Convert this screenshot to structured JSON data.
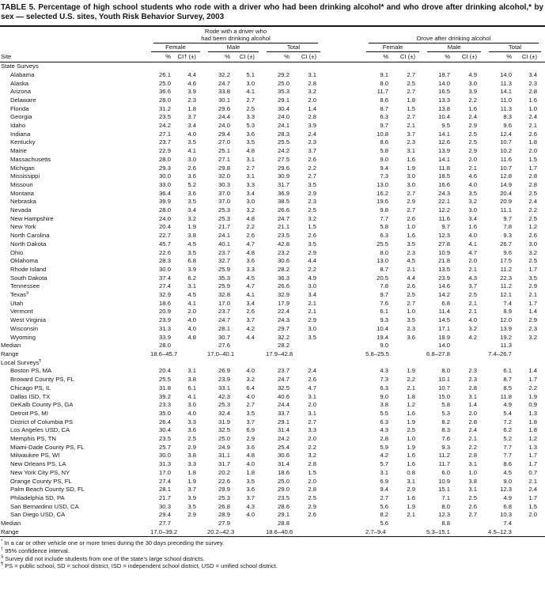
{
  "title": "TABLE 5. Percentage of high school students who rode with a driver who had been drinking alcohol* and who drove after drinking alcohol,* by sex — selected U.S. sites, Youth Risk Behavior Survey, 2003",
  "header": {
    "site": "Site",
    "group_rode_line1": "Rode with a driver who",
    "group_rode_line2": "had been drinking alcohol",
    "group_drove": "Drove after drinking alcohol",
    "female": "Female",
    "male": "Male",
    "total": "Total",
    "pct": "%",
    "ci_dagger": "CI† (±)",
    "ci": "CI (±)"
  },
  "sections": [
    {
      "label": "State Surveys",
      "rows": [
        {
          "site": "Alabama",
          "v": [
            "26.1",
            "4.4",
            "32.2",
            "5.1",
            "29.2",
            "3.1",
            "9.1",
            "2.7",
            "18.7",
            "4.9",
            "14.0",
            "3.4"
          ]
        },
        {
          "site": "Alaska",
          "v": [
            "25.0",
            "4.6",
            "24.7",
            "3.0",
            "25.0",
            "2.8",
            "8.0",
            "2.5",
            "14.0",
            "3.0",
            "11.3",
            "2.3"
          ]
        },
        {
          "site": "Arizona",
          "v": [
            "36.6",
            "3.9",
            "33.8",
            "4.1",
            "35.3",
            "3.2",
            "11.7",
            "2.7",
            "16.5",
            "3.9",
            "14.1",
            "2.8"
          ]
        },
        {
          "site": "Delaware",
          "v": [
            "28.0",
            "2.3",
            "30.1",
            "2.7",
            "29.1",
            "2.0",
            "8.6",
            "1.8",
            "13.3",
            "2.2",
            "11.0",
            "1.6"
          ]
        },
        {
          "site": "Florida",
          "v": [
            "31.2",
            "1.8",
            "29.6",
            "2.5",
            "30.4",
            "1.4",
            "8.7",
            "1.5",
            "13.8",
            "1.6",
            "11.3",
            "1.0"
          ]
        },
        {
          "site": "Georgia",
          "v": [
            "23.5",
            "3.7",
            "24.4",
            "3.3",
            "24.0",
            "2.8",
            "6.3",
            "2.7",
            "10.4",
            "2.4",
            "8.3",
            "2.4"
          ]
        },
        {
          "site": "Idaho",
          "v": [
            "24.2",
            "3.4",
            "24.0",
            "5.3",
            "24.1",
            "3.9",
            "9.7",
            "2.1",
            "9.5",
            "2.9",
            "9.6",
            "2.1"
          ]
        },
        {
          "site": "Indiana",
          "v": [
            "27.1",
            "4.0",
            "29.4",
            "3.6",
            "28.3",
            "2.4",
            "10.8",
            "3.7",
            "14.1",
            "2.5",
            "12.4",
            "2.6"
          ]
        },
        {
          "site": "Kentucky",
          "v": [
            "23.7",
            "3.5",
            "27.0",
            "3.5",
            "25.5",
            "2.3",
            "8.6",
            "2.3",
            "12.6",
            "2.5",
            "10.7",
            "1.8"
          ]
        },
        {
          "site": "Maine",
          "v": [
            "22.9",
            "4.1",
            "25.1",
            "4.8",
            "24.2",
            "3.7",
            "5.8",
            "3.1",
            "13.9",
            "2.9",
            "10.2",
            "2.0"
          ]
        },
        {
          "site": "Massachusetts",
          "v": [
            "28.0",
            "3.0",
            "27.1",
            "3.1",
            "27.5",
            "2.6",
            "9.0",
            "1.6",
            "14.1",
            "2.0",
            "11.6",
            "1.5"
          ]
        },
        {
          "site": "Michigan",
          "v": [
            "29.3",
            "2.6",
            "29.8",
            "2.7",
            "29.6",
            "2.2",
            "9.4",
            "1.9",
            "11.8",
            "2.1",
            "10.7",
            "1.7"
          ]
        },
        {
          "site": "Mississippi",
          "v": [
            "30.0",
            "3.6",
            "32.0",
            "3.1",
            "30.9",
            "2.7",
            "7.3",
            "3.0",
            "18.5",
            "4.6",
            "12.8",
            "2.8"
          ]
        },
        {
          "site": "Missouri",
          "v": [
            "33.0",
            "5.2",
            "30.3",
            "3.3",
            "31.7",
            "3.5",
            "13.0",
            "3.0",
            "16.6",
            "4.0",
            "14.9",
            "2.8"
          ]
        },
        {
          "site": "Montana",
          "v": [
            "36.4",
            "3.6",
            "37.0",
            "3.4",
            "36.9",
            "2.9",
            "16.2",
            "2.7",
            "24.3",
            "3.5",
            "20.4",
            "2.5"
          ]
        },
        {
          "site": "Nebraska",
          "v": [
            "39.9",
            "3.5",
            "37.0",
            "3.0",
            "38.5",
            "2.3",
            "19.6",
            "2.9",
            "22.1",
            "3.2",
            "20.9",
            "2.4"
          ]
        },
        {
          "site": "Nevada",
          "v": [
            "28.0",
            "3.4",
            "25.3",
            "3.2",
            "26.6",
            "2.5",
            "9.8",
            "2.7",
            "12.2",
            "3.0",
            "11.1",
            "2.2"
          ]
        },
        {
          "site": "New Hampshire",
          "v": [
            "24.0",
            "3.2",
            "25.3",
            "4.8",
            "24.7",
            "3.2",
            "7.7",
            "2.6",
            "11.6",
            "3.4",
            "9.7",
            "2.5"
          ]
        },
        {
          "site": "New York",
          "v": [
            "20.4",
            "1.9",
            "21.7",
            "2.2",
            "21.1",
            "1.5",
            "5.8",
            "1.0",
            "9.7",
            "1.6",
            "7.8",
            "1.2"
          ]
        },
        {
          "site": "North Carolina",
          "v": [
            "22.7",
            "3.8",
            "24.1",
            "2.6",
            "23.5",
            "2.6",
            "6.3",
            "1.6",
            "12.3",
            "4.0",
            "9.3",
            "2.6"
          ]
        },
        {
          "site": "North Dakota",
          "v": [
            "45.7",
            "4.5",
            "40.1",
            "4.7",
            "42.8",
            "3.5",
            "25.5",
            "3.5",
            "27.8",
            "4.1",
            "26.7",
            "3.0"
          ]
        },
        {
          "site": "Ohio",
          "v": [
            "22.6",
            "3.5",
            "23.7",
            "4.8",
            "23.2",
            "2.9",
            "8.0",
            "2.3",
            "10.9",
            "4.7",
            "9.6",
            "3.2"
          ]
        },
        {
          "site": "Oklahoma",
          "v": [
            "28.3",
            "6.8",
            "32.7",
            "3.6",
            "30.6",
            "4.4",
            "13.0",
            "4.5",
            "21.8",
            "2.0",
            "17.5",
            "2.5"
          ]
        },
        {
          "site": "Rhode Island",
          "v": [
            "30.0",
            "3.9",
            "25.9",
            "3.3",
            "28.2",
            "2.2",
            "8.7",
            "2.1",
            "13.5",
            "2.1",
            "11.2",
            "1.7"
          ]
        },
        {
          "site": "South Dakota",
          "v": [
            "37.4",
            "6.2",
            "35.3",
            "4.5",
            "36.3",
            "4.9",
            "20.5",
            "4.4",
            "23.9",
            "4.3",
            "22.3",
            "3.5"
          ]
        },
        {
          "site": "Tennessee",
          "v": [
            "27.4",
            "3.1",
            "25.9",
            "4.7",
            "26.6",
            "3.0",
            "7.8",
            "2.6",
            "14.6",
            "3.7",
            "11.2",
            "2.9"
          ]
        },
        {
          "site": "Texas",
          "sup": "§",
          "v": [
            "32.9",
            "4.5",
            "32.8",
            "4.1",
            "32.9",
            "3.4",
            "9.7",
            "2.5",
            "14.2",
            "2.5",
            "12.1",
            "2.1"
          ]
        },
        {
          "site": "Utah",
          "v": [
            "18.6",
            "4.1",
            "17.0",
            "3.4",
            "17.9",
            "2.1",
            "7.6",
            "2.7",
            "6.8",
            "2.1",
            "7.4",
            "1.7"
          ]
        },
        {
          "site": "Vermont",
          "v": [
            "20.9",
            "2.0",
            "23.7",
            "2.6",
            "22.4",
            "2.1",
            "6.1",
            "1.0",
            "11.4",
            "2.1",
            "8.9",
            "1.4"
          ]
        },
        {
          "site": "West Virginia",
          "v": [
            "23.9",
            "4.0",
            "24.7",
            "3.7",
            "24.3",
            "2.9",
            "9.3",
            "3.5",
            "14.5",
            "4.0",
            "12.0",
            "2.9"
          ]
        },
        {
          "site": "Wisconsin",
          "v": [
            "31.3",
            "4.0",
            "28.1",
            "4.2",
            "29.7",
            "3.0",
            "10.4",
            "2.3",
            "17.1",
            "3.2",
            "13.9",
            "2.3"
          ]
        },
        {
          "site": "Wyoming",
          "v": [
            "33.9",
            "4.8",
            "30.7",
            "4.4",
            "32.2",
            "3.5",
            "19.4",
            "3.6",
            "18.9",
            "4.2",
            "19.2",
            "3.2"
          ]
        }
      ],
      "median_label": "Median",
      "median": [
        "28.0",
        "27.6",
        "28.2",
        "9.0",
        "14.0",
        "11.3"
      ],
      "range_label": "Range",
      "range": [
        "18.6–45.7",
        "17.0–40.1",
        "17.9–42.8",
        "5.8–25.5",
        "6.8–27.8",
        "7.4–26.7"
      ]
    },
    {
      "label": "Local Surveys",
      "sup": "¶",
      "rows": [
        {
          "site": "Boston PS, MA",
          "v": [
            "20.4",
            "3.1",
            "26.9",
            "4.0",
            "23.7",
            "2.4",
            "4.3",
            "1.9",
            "8.0",
            "2.3",
            "6.1",
            "1.4"
          ]
        },
        {
          "site": "Broward County PS, FL",
          "v": [
            "25.5",
            "3.8",
            "23.9",
            "3.2",
            "24.7",
            "2.6",
            "7.3",
            "2.2",
            "10.1",
            "2.3",
            "8.7",
            "1.7"
          ]
        },
        {
          "site": "Chicago PS, IL",
          "v": [
            "31.8",
            "6.1",
            "33.1",
            "6.4",
            "32.5",
            "4.7",
            "6.3",
            "2.1",
            "10.7",
            "2.8",
            "8.5",
            "2.2"
          ]
        },
        {
          "site": "Dallas ISD, TX",
          "v": [
            "39.2",
            "4.1",
            "42.3",
            "4.0",
            "40.6",
            "3.1",
            "9.0",
            "1.8",
            "15.0",
            "3.1",
            "11.8",
            "1.9"
          ]
        },
        {
          "site": "DeKalb County PS, GA",
          "v": [
            "23.3",
            "3.0",
            "25.3",
            "2.7",
            "24.4",
            "2.0",
            "3.8",
            "1.2",
            "5.8",
            "1.4",
            "4.9",
            "0.9"
          ]
        },
        {
          "site": "Detroit PS, MI",
          "v": [
            "35.0",
            "4.0",
            "32.4",
            "3.5",
            "33.7",
            "3.1",
            "5.5",
            "1.6",
            "5.3",
            "2.0",
            "5.4",
            "1.3"
          ]
        },
        {
          "site": "District of Columbia PS",
          "v": [
            "26.4",
            "3.3",
            "31.9",
            "3.7",
            "29.1",
            "2.7",
            "6.3",
            "1.9",
            "8.2",
            "2.8",
            "7.2",
            "1.8"
          ]
        },
        {
          "site": "Los Angeles USD, CA",
          "v": [
            "30.4",
            "3.6",
            "32.5",
            "6.9",
            "31.4",
            "3.3",
            "4.3",
            "2.5",
            "8.3",
            "2.4",
            "6.2",
            "1.8"
          ]
        },
        {
          "site": "Memphis PS, TN",
          "v": [
            "23.5",
            "2.5",
            "25.0",
            "2.9",
            "24.2",
            "2.0",
            "2.8",
            "1.0",
            "7.6",
            "2.1",
            "5.2",
            "1.2"
          ]
        },
        {
          "site": "Miami-Dade County PS, FL",
          "v": [
            "25.7",
            "2.9",
            "24.9",
            "3.6",
            "25.4",
            "2.2",
            "5.9",
            "1.9",
            "9.3",
            "2.2",
            "7.7",
            "1.3"
          ]
        },
        {
          "site": "Milwaukee PS, WI",
          "v": [
            "30.0",
            "3.8",
            "31.1",
            "4.8",
            "30.6",
            "3.2",
            "4.2",
            "1.6",
            "11.2",
            "2.8",
            "7.7",
            "1.7"
          ]
        },
        {
          "site": "New Orleans PS, LA",
          "v": [
            "31.3",
            "3.3",
            "31.7",
            "4.0",
            "31.4",
            "2.8",
            "5.7",
            "1.6",
            "11.7",
            "3.1",
            "8.6",
            "1.7"
          ]
        },
        {
          "site": "New York City PS, NY",
          "v": [
            "17.0",
            "1.8",
            "20.2",
            "1.8",
            "18.6",
            "1.5",
            "3.1",
            "0.8",
            "6.0",
            "1.0",
            "4.5",
            "0.7"
          ]
        },
        {
          "site": "Orange County PS, FL",
          "v": [
            "27.4",
            "1.9",
            "22.6",
            "3.5",
            "25.0",
            "2.0",
            "6.9",
            "3.1",
            "10.9",
            "3.8",
            "9.0",
            "2.1"
          ]
        },
        {
          "site": "Palm Beach County SD, FL",
          "v": [
            "28.1",
            "3.7",
            "29.9",
            "3.6",
            "29.0",
            "2.8",
            "9.4",
            "2.9",
            "15.1",
            "3.1",
            "12.3",
            "2.4"
          ]
        },
        {
          "site": "Philadelphia SD, PA",
          "v": [
            "21.7",
            "3.9",
            "25.3",
            "3.7",
            "23.5",
            "2.5",
            "2.7",
            "1.6",
            "7.1",
            "2.5",
            "4.9",
            "1.7"
          ]
        },
        {
          "site": "San Bernardino USD, CA",
          "v": [
            "30.3",
            "3.5",
            "26.8",
            "4.3",
            "28.6",
            "2.9",
            "5.6",
            "1.9",
            "8.0",
            "2.6",
            "6.8",
            "1.5"
          ]
        },
        {
          "site": "San Diego USD, CA",
          "v": [
            "29.4",
            "2.9",
            "28.9",
            "4.0",
            "29.1",
            "2.6",
            "8.2",
            "2.1",
            "12.3",
            "2.7",
            "10.3",
            "2.0"
          ]
        }
      ],
      "median_label": "Median",
      "median": [
        "27.7",
        "27.9",
        "28.8",
        "5.6",
        "8.8",
        "7.4"
      ],
      "range_label": "Range",
      "range": [
        "17.0–39.2",
        "20.2–42.3",
        "18.6–40.6",
        "2.7–9.4",
        "5.3–15.1",
        "4.5–12.3"
      ]
    }
  ],
  "footnotes": [
    {
      "mark": "*",
      "text": "In a car or other vehicle one or more times during the 30 days preceding the survey."
    },
    {
      "mark": "†",
      "text": "95% confidence interval."
    },
    {
      "mark": "§",
      "text": "Survey did not include students from one of the state’s large school districts."
    },
    {
      "mark": "¶",
      "text": "PS = public school, SD = school district, ISD = independent school district, USD = unified school district."
    }
  ]
}
